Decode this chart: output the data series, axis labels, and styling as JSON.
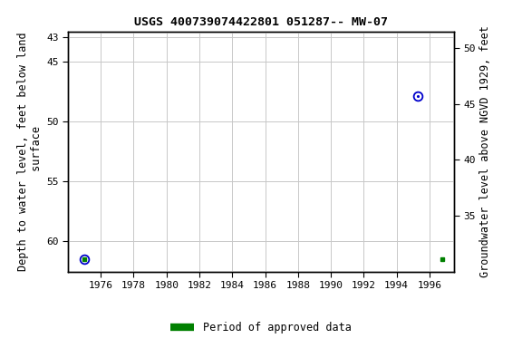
{
  "title": "USGS 400739074422801 051287-- MW-07",
  "ylabel_left": "Depth to water level, feet below land\n surface",
  "ylabel_right": "Groundwater level above NGVD 1929, feet",
  "xlim": [
    1974.0,
    1997.5
  ],
  "ylim_left": [
    62.5,
    42.5
  ],
  "ylim_right": [
    30.0,
    51.5
  ],
  "yticks_left": [
    43,
    45,
    50,
    55,
    60
  ],
  "yticks_right": [
    35,
    40,
    45,
    50
  ],
  "xticks": [
    1976,
    1978,
    1980,
    1982,
    1984,
    1986,
    1988,
    1990,
    1992,
    1994,
    1996
  ],
  "data_points": [
    {
      "x": 1975.0,
      "y_left": 61.5,
      "color": "#0000cc"
    },
    {
      "x": 1995.3,
      "y_left": 47.9,
      "color": "#0000cc"
    }
  ],
  "green_square_plot": {
    "x": 1996.8,
    "y_left": 61.5
  },
  "green_square_1975": {
    "x": 1975.0,
    "y_left": 61.5
  },
  "legend_label": "Period of approved data",
  "legend_color": "#008000",
  "grid_color": "#c8c8c8",
  "background_color": "#ffffff",
  "plot_bg": "#ffffff",
  "title_fontsize": 9.5,
  "axis_label_fontsize": 8.5,
  "tick_fontsize": 8
}
